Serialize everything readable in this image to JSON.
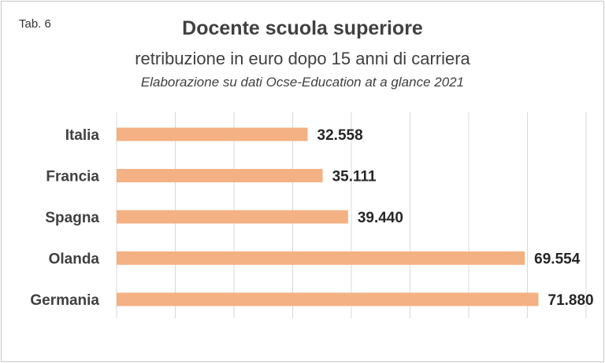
{
  "chart_data": {
    "type": "bar",
    "orientation": "horizontal",
    "tag": "Tab. 6",
    "title": "Docente scuola superiore",
    "subtitle": "retribuzione in euro dopo 15 anni di carriera",
    "source": "Elaborazione su dati Ocse-Education at a glance 2021",
    "categories": [
      "Italia",
      "Francia",
      "Spagna",
      "Olanda",
      "Germania"
    ],
    "values": [
      32558,
      35111,
      39440,
      69554,
      71880
    ],
    "value_labels": [
      "32.558",
      "35.111",
      "39.440",
      "69.554",
      "71.880"
    ],
    "xlim": [
      0,
      80000
    ],
    "x_grid_step": 10000,
    "grid": true,
    "bar_color": "#F4B183"
  }
}
